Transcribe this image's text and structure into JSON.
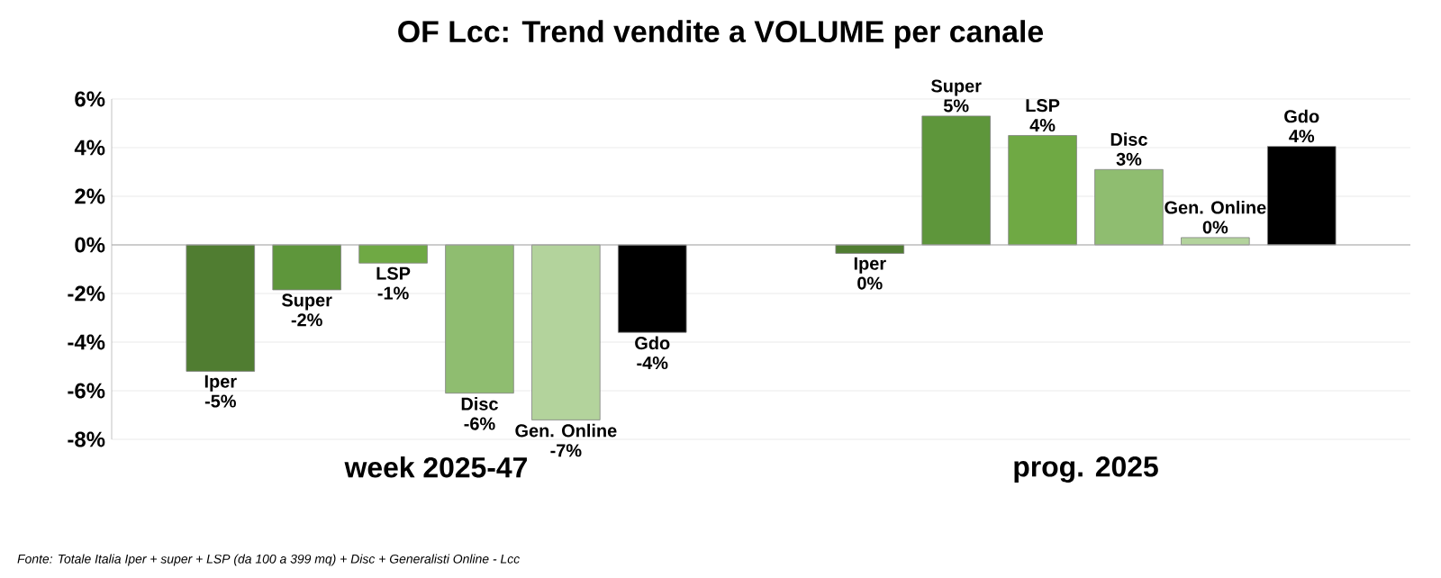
{
  "chart_data": {
    "type": "bar",
    "title": "OF Lcc: Trend vendite a VOLUME per canale",
    "categories": [
      "week 2025-47",
      "prog. 2025"
    ],
    "series": [
      {
        "name": "Iper",
        "color": "#507d31",
        "values": [
          -5.2,
          -0.35
        ],
        "value_labels": [
          "-5%",
          "0%"
        ]
      },
      {
        "name": "Super",
        "color": "#5e963b",
        "values": [
          -1.85,
          5.3
        ],
        "value_labels": [
          "-2%",
          "5%"
        ]
      },
      {
        "name": "LSP",
        "color": "#6fa944",
        "values": [
          -0.75,
          4.5
        ],
        "value_labels": [
          "-1%",
          "4%"
        ]
      },
      {
        "name": "Disc",
        "color": "#8fbd70",
        "values": [
          -6.1,
          3.1
        ],
        "value_labels": [
          "-6%",
          "3%"
        ]
      },
      {
        "name": "Gen. Online",
        "color": "#b3d39c",
        "values": [
          -7.2,
          0.3
        ],
        "value_labels": [
          "-7%",
          "0%"
        ]
      },
      {
        "name": "Gdo",
        "color": "#000000",
        "values": [
          -3.6,
          4.05
        ],
        "value_labels": [
          "-4%",
          "4%"
        ]
      }
    ],
    "ylim": [
      -8,
      6
    ],
    "yticks": [
      {
        "value": -8,
        "label": "-8%"
      },
      {
        "value": -6,
        "label": "-6%"
      },
      {
        "value": -4,
        "label": "-4%"
      },
      {
        "value": -2,
        "label": "-2%"
      },
      {
        "value": 0,
        "label": "0%"
      },
      {
        "value": 2,
        "label": "2%"
      },
      {
        "value": 4,
        "label": "4%"
      },
      {
        "value": 6,
        "label": "6%"
      }
    ],
    "grid": "y",
    "annotations": [
      "Fonte: Totale Italia Iper + super + LSP (da 100 a 399 mq) + Disc + Generalisti Online - Lcc"
    ]
  }
}
